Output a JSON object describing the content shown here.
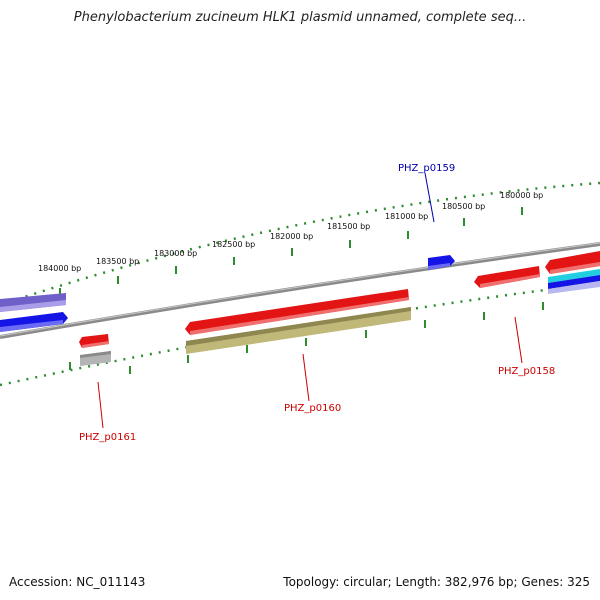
{
  "title": "Phenylobacterium zucineum HLK1 plasmid unnamed, complete seq...",
  "footer": {
    "accession": "Accession: NC_011143",
    "summary": "Topology: circular; Length: 382,976 bp; Genes: 325"
  },
  "colors": {
    "backbone": "#8a8a8a",
    "ruler": "#2e8b2e",
    "forward_gene": "#e31414",
    "reverse_gene": "#1414e6",
    "olive_feature": "#b8b070",
    "gray_feature": "#b4b4b4",
    "purple_feature": "#7a6ad0",
    "cyan_feature": "#20d0e0",
    "forward_label": "#cc0000",
    "reverse_label": "#0000aa"
  },
  "ruler_ticks": [
    "184000 bp",
    "183500 bp",
    "183000 bp",
    "182500 bp",
    "182000 bp",
    "181500 bp",
    "181000 bp",
    "180500 bp",
    "180000 bp"
  ],
  "gene_labels": [
    {
      "id": "p0159",
      "text": "PHZ_p0159",
      "strand": "reverse"
    },
    {
      "id": "p0160",
      "text": "PHZ_p0160",
      "strand": "forward"
    },
    {
      "id": "p0158",
      "text": "PHZ_p0158",
      "strand": "forward"
    },
    {
      "id": "p0161",
      "text": "PHZ_p0161",
      "strand": "forward"
    }
  ]
}
